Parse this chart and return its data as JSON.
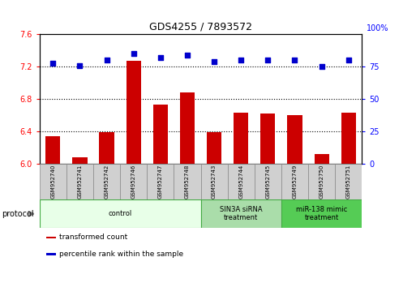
{
  "title": "GDS4255 / 7893572",
  "samples": [
    "GSM952740",
    "GSM952741",
    "GSM952742",
    "GSM952746",
    "GSM952747",
    "GSM952748",
    "GSM952743",
    "GSM952744",
    "GSM952745",
    "GSM952749",
    "GSM952750",
    "GSM952751"
  ],
  "bar_values": [
    6.34,
    6.08,
    6.39,
    7.27,
    6.73,
    6.88,
    6.39,
    6.63,
    6.62,
    6.6,
    6.12,
    6.63
  ],
  "dot_values": [
    78,
    76,
    80,
    85,
    82,
    84,
    79,
    80,
    80,
    80,
    75,
    80
  ],
  "bar_color": "#cc0000",
  "dot_color": "#0000cc",
  "ylim_left": [
    6.0,
    7.6
  ],
  "ylim_right": [
    0,
    100
  ],
  "yticks_left": [
    6.0,
    6.4,
    6.8,
    7.2,
    7.6
  ],
  "yticks_right": [
    0,
    25,
    50,
    75
  ],
  "right_top_label": "100%",
  "grid_lines": [
    6.4,
    6.8,
    7.2
  ],
  "groups": [
    {
      "label": "control",
      "start": 0,
      "end": 6,
      "color": "#e8ffe8",
      "edge_color": "#44aa44"
    },
    {
      "label": "SIN3A siRNA\ntreatment",
      "start": 6,
      "end": 9,
      "color": "#aaddaa",
      "edge_color": "#44aa44"
    },
    {
      "label": "miR-138 mimic\ntreatment",
      "start": 9,
      "end": 12,
      "color": "#55cc55",
      "edge_color": "#44aa44"
    }
  ],
  "protocol_label": "protocol",
  "legend_items": [
    {
      "label": "transformed count",
      "color": "#cc0000"
    },
    {
      "label": "percentile rank within the sample",
      "color": "#0000cc"
    }
  ],
  "bar_width": 0.55,
  "sample_box_color": "#d0d0d0",
  "sample_box_edge": "#888888"
}
